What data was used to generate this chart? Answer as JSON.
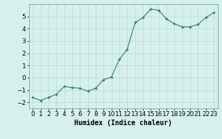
{
  "x": [
    0,
    1,
    2,
    3,
    4,
    5,
    6,
    7,
    8,
    9,
    10,
    11,
    12,
    13,
    14,
    15,
    16,
    17,
    18,
    19,
    20,
    21,
    22,
    23
  ],
  "y": [
    -1.6,
    -1.85,
    -1.6,
    -1.35,
    -0.7,
    -0.8,
    -0.85,
    -1.1,
    -0.85,
    -0.15,
    0.05,
    1.5,
    2.3,
    4.5,
    4.9,
    5.6,
    5.5,
    4.8,
    4.4,
    4.15,
    4.15,
    4.35,
    4.9,
    5.3
  ],
  "line_color": "#2a7a65",
  "marker_color": "#2a7a65",
  "bg_color": "#d6f0ee",
  "grid_color": "#b8d8d4",
  "xlabel": "Humidex (Indice chaleur)",
  "xlim": [
    -0.5,
    23.5
  ],
  "ylim": [
    -2.5,
    6.0
  ],
  "yticks": [
    -2,
    -1,
    0,
    1,
    2,
    3,
    4,
    5
  ],
  "xtick_labels": [
    "0",
    "1",
    "2",
    "3",
    "4",
    "5",
    "6",
    "7",
    "8",
    "9",
    "10",
    "11",
    "12",
    "13",
    "14",
    "15",
    "16",
    "17",
    "18",
    "19",
    "20",
    "21",
    "22",
    "23"
  ],
  "xlabel_fontsize": 7,
  "tick_fontsize": 6.5
}
